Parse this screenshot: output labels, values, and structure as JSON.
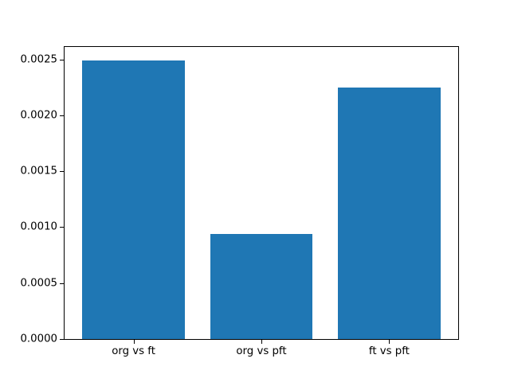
{
  "figure": {
    "background": "#ffffff"
  },
  "chart_data": {
    "type": "bar",
    "title": "",
    "xlabel": "",
    "ylabel": "",
    "categories": [
      "org vs ft",
      "org vs pft",
      "ft vs pft"
    ],
    "values": [
      0.00249,
      0.00094,
      0.00225
    ],
    "bar_color": "#1f77b4",
    "bar_width": 0.8,
    "xlim": [
      -0.54,
      2.54
    ],
    "ylim": [
      0,
      0.002615
    ],
    "yticks": [
      0,
      0.0005,
      0.001,
      0.0015,
      0.002,
      0.0025
    ],
    "ytick_labels": [
      "0.0000",
      "0.0005",
      "0.0010",
      "0.0015",
      "0.0020",
      "0.0025"
    ],
    "grid": false,
    "legend_position": "none"
  }
}
